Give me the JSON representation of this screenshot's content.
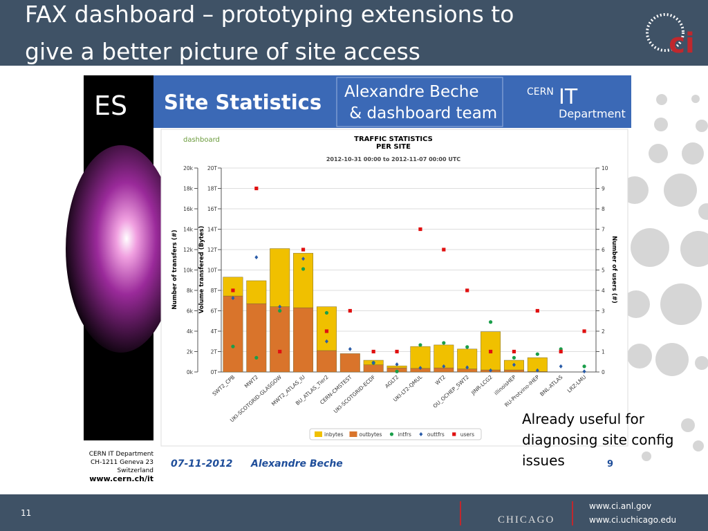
{
  "slide": {
    "title": [
      "FAX dashboard – prototyping extensions to",
      "give a better picture of site access"
    ],
    "logo": "ci",
    "banner": {
      "left": "ES",
      "heading": "Site Statistics",
      "authors": [
        "Alexandre Beche",
        " & dashboard team"
      ],
      "cern": "CERN",
      "it": "IT",
      "department": "Department"
    },
    "footer": {
      "address": [
        "CERN IT Department",
        "CH-1211 Geneva 23",
        "Switzerland"
      ],
      "url": "www.cern.ch/it",
      "date": "07-11-2012",
      "author": "Alexandre Beche",
      "page": "9"
    },
    "note": [
      "Already useful for",
      "diagnosing site config",
      "issues"
    ],
    "number": "11",
    "university": "CHICAGO",
    "links": [
      "www.ci.anl.gov",
      "www.ci.uchicago.edu"
    ]
  },
  "chart_data": {
    "type": "bar",
    "brand": "dashboard",
    "title": [
      "TRAFFIC STATISTICS",
      "PER SITE"
    ],
    "subtitle": "2012-10-31 00:00 to 2012-11-07 00:00 UTC",
    "ylabel": "Number of transfers (#)",
    "ylabel_volume": "Volume transfered (Bytes)",
    "y2label": "Number of users (#)",
    "categories": [
      "SWT2_CPB",
      "MWT2",
      "UKI-SCOTGRID-GLASGOW",
      "MWT2_ATLAS_IU",
      "BU_ATLAS_Tier2",
      "CERN-CMSTEST",
      "UKI-SCOTGRID-ECDF",
      "AGLT2",
      "UKI-LT2-QMUL",
      "WT2",
      "OU_OCHEP_SWT2",
      "JINR-LCG2",
      "illinoisHEP",
      "RU-Protvino-IHEP",
      "BNL-ATLAS",
      "LRZ-LMU"
    ],
    "ylim": [
      0,
      20
    ],
    "yticks": [
      {
        "value": 0,
        "label": "0k"
      },
      {
        "value": 2,
        "label": "2k"
      },
      {
        "value": 4,
        "label": "4k"
      },
      {
        "value": 6,
        "label": "6k"
      },
      {
        "value": 8,
        "label": "8k"
      },
      {
        "value": 10,
        "label": "10k"
      },
      {
        "value": 12,
        "label": "12k"
      },
      {
        "value": 14,
        "label": "14k"
      },
      {
        "value": 16,
        "label": "16k"
      },
      {
        "value": 18,
        "label": "18k"
      },
      {
        "value": 20,
        "label": "20k"
      }
    ],
    "volume_ticks": [
      {
        "value": 0,
        "label": "0T"
      },
      {
        "value": 2,
        "label": "2T"
      },
      {
        "value": 4,
        "label": "4T"
      },
      {
        "value": 6,
        "label": "6T"
      },
      {
        "value": 8,
        "label": "8T"
      },
      {
        "value": 10,
        "label": "10T"
      },
      {
        "value": 12,
        "label": "12T"
      },
      {
        "value": 14,
        "label": "14T"
      },
      {
        "value": 16,
        "label": "16T"
      },
      {
        "value": 18,
        "label": "18T"
      },
      {
        "value": 20,
        "label": "20T"
      }
    ],
    "y2lim": [
      0,
      10
    ],
    "y2ticks": [
      0,
      1,
      2,
      3,
      4,
      5,
      6,
      7,
      8,
      9,
      10
    ],
    "grid": true,
    "legend": "bottom",
    "series": [
      {
        "name": "inbytes",
        "color": "#f0c000",
        "marker": "bar",
        "values": [
          1.85,
          2.25,
          5.7,
          5.35,
          4.3,
          0,
          0.45,
          0.2,
          2.15,
          2.25,
          1.95,
          3.75,
          0.95,
          1.35,
          0,
          0
        ]
      },
      {
        "name": "outbytes",
        "color": "#d9742b",
        "marker": "bar",
        "values": [
          7.45,
          6.7,
          6.4,
          6.3,
          2.1,
          1.8,
          0.7,
          0.4,
          0.35,
          0.4,
          0.3,
          0.2,
          0.2,
          0.05,
          0,
          0
        ]
      },
      {
        "name": "intfrs",
        "color": "#1a9e4a",
        "marker": "circle",
        "values": [
          2.5,
          1.4,
          6.0,
          10.1,
          5.8,
          null,
          0.9,
          0.05,
          2.65,
          2.85,
          2.45,
          4.9,
          1.4,
          1.75,
          2.25,
          0.55
        ]
      },
      {
        "name": "outtfrs",
        "color": "#2a5ca8",
        "marker": "diamond",
        "values": [
          7.25,
          11.25,
          6.4,
          11.1,
          3.0,
          2.25,
          0.9,
          0.75,
          0.4,
          0.55,
          0.45,
          0.15,
          0.7,
          0.15,
          0.55,
          0.05
        ]
      },
      {
        "name": "users",
        "color": "#e01010",
        "marker": "square",
        "axis": "y2",
        "values": [
          4,
          9,
          1,
          6,
          2,
          3,
          1,
          1,
          7,
          6,
          4,
          1,
          1,
          3,
          1,
          2
        ]
      }
    ]
  }
}
